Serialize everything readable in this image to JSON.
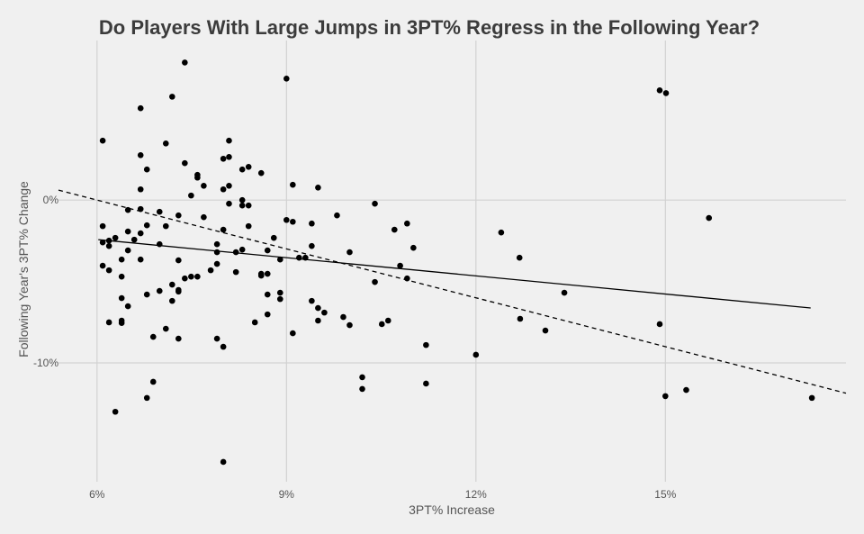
{
  "chart_data": {
    "type": "scatter",
    "title": "Do Players With Large Jumps in 3PT% Regress in the Following Year?",
    "xlabel": "3PT% Increase",
    "ylabel": "Following Year's 3PT% Change",
    "xlim": [
      5.39,
      17.86
    ],
    "ylim": [
      -17.3,
      9.8
    ],
    "x_ticks": [
      {
        "value": 6,
        "label": "6%"
      },
      {
        "value": 9,
        "label": "9%"
      },
      {
        "value": 12,
        "label": "12%"
      },
      {
        "value": 15,
        "label": "15%"
      }
    ],
    "y_ticks": [
      {
        "value": 0,
        "label": "0%"
      },
      {
        "value": -10,
        "label": "-10%"
      }
    ],
    "grid": true,
    "point_color": "#000000",
    "background": "#f0f0f0",
    "lines": [
      {
        "style": "solid",
        "intercept": -0.19,
        "slope": -0.372,
        "x_range": [
          6.02,
          17.3
        ]
      },
      {
        "style": "dashed",
        "intercept": 6.0,
        "slope": -1.0,
        "x_range": [
          5.39,
          17.86
        ]
      }
    ],
    "points": [
      [
        7.39,
        8.45
      ],
      [
        7.19,
        6.35
      ],
      [
        6.69,
        5.64
      ],
      [
        6.09,
        3.65
      ],
      [
        7.09,
        3.48
      ],
      [
        8.09,
        3.65
      ],
      [
        6.69,
        2.76
      ],
      [
        8.0,
        2.54
      ],
      [
        8.09,
        2.65
      ],
      [
        6.79,
        1.88
      ],
      [
        7.39,
        2.27
      ],
      [
        7.59,
        1.55
      ],
      [
        7.59,
        1.38
      ],
      [
        8.3,
        1.88
      ],
      [
        8.4,
        2.04
      ],
      [
        8.6,
        1.66
      ],
      [
        6.69,
        0.66
      ],
      [
        7.69,
        0.88
      ],
      [
        8.0,
        0.66
      ],
      [
        8.09,
        0.88
      ],
      [
        7.49,
        0.28
      ],
      [
        8.09,
        -0.22
      ],
      [
        8.3,
        0.0
      ],
      [
        8.3,
        -0.33
      ],
      [
        8.4,
        -0.33
      ],
      [
        6.49,
        -0.61
      ],
      [
        6.69,
        -0.55
      ],
      [
        6.99,
        -0.72
      ],
      [
        7.29,
        -0.94
      ],
      [
        7.69,
        -1.05
      ],
      [
        6.09,
        -1.6
      ],
      [
        6.79,
        -1.55
      ],
      [
        7.09,
        -1.6
      ],
      [
        8.0,
        -1.82
      ],
      [
        8.4,
        -1.6
      ],
      [
        6.49,
        -1.93
      ],
      [
        6.29,
        -2.32
      ],
      [
        6.59,
        -2.43
      ],
      [
        6.69,
        -2.04
      ],
      [
        6.09,
        -2.6
      ],
      [
        6.19,
        -2.49
      ],
      [
        6.19,
        -2.82
      ],
      [
        6.99,
        -2.71
      ],
      [
        7.9,
        -2.71
      ],
      [
        6.49,
        -3.09
      ],
      [
        7.9,
        -3.2
      ],
      [
        8.2,
        -3.2
      ],
      [
        8.3,
        -3.04
      ],
      [
        8.7,
        -3.09
      ],
      [
        6.39,
        -3.65
      ],
      [
        6.69,
        -3.65
      ],
      [
        7.29,
        -3.7
      ],
      [
        6.09,
        -4.03
      ],
      [
        6.19,
        -4.31
      ],
      [
        7.39,
        -4.81
      ],
      [
        7.49,
        -4.7
      ],
      [
        7.59,
        -4.7
      ],
      [
        7.8,
        -4.31
      ],
      [
        7.9,
        -3.92
      ],
      [
        8.2,
        -4.42
      ],
      [
        8.6,
        -4.53
      ],
      [
        8.6,
        -4.64
      ],
      [
        8.7,
        -4.53
      ],
      [
        6.39,
        -4.7
      ],
      [
        7.19,
        -5.19
      ],
      [
        6.99,
        -5.58
      ],
      [
        6.79,
        -5.8
      ],
      [
        7.29,
        -5.52
      ],
      [
        7.29,
        -5.62
      ],
      [
        7.19,
        -6.19
      ],
      [
        6.39,
        -6.02
      ],
      [
        6.49,
        -6.52
      ],
      [
        8.7,
        -5.8
      ],
      [
        6.19,
        -7.51
      ],
      [
        6.39,
        -7.4
      ],
      [
        6.39,
        -7.55
      ],
      [
        8.5,
        -7.51
      ],
      [
        8.7,
        -7.02
      ],
      [
        7.09,
        -7.9
      ],
      [
        6.89,
        -8.4
      ],
      [
        7.29,
        -8.51
      ],
      [
        7.9,
        -8.51
      ],
      [
        8.0,
        -9.01
      ],
      [
        6.89,
        -11.16
      ],
      [
        6.79,
        -12.15
      ],
      [
        6.29,
        -13.0
      ],
      [
        8.0,
        -16.08
      ],
      [
        9.0,
        7.46
      ],
      [
        9.1,
        0.94
      ],
      [
        9.5,
        0.77
      ],
      [
        10.4,
        -0.22
      ],
      [
        9.0,
        -1.22
      ],
      [
        9.1,
        -1.33
      ],
      [
        9.4,
        -1.44
      ],
      [
        9.8,
        -0.94
      ],
      [
        10.71,
        -1.82
      ],
      [
        10.91,
        -1.44
      ],
      [
        8.8,
        -2.32
      ],
      [
        9.4,
        -2.82
      ],
      [
        11.01,
        -2.93
      ],
      [
        8.9,
        -3.65
      ],
      [
        9.2,
        -3.54
      ],
      [
        9.3,
        -3.54
      ],
      [
        10.0,
        -3.2
      ],
      [
        10.8,
        -4.03
      ],
      [
        10.4,
        -5.03
      ],
      [
        10.91,
        -4.81
      ],
      [
        8.9,
        -5.69
      ],
      [
        8.9,
        -6.08
      ],
      [
        9.4,
        -6.19
      ],
      [
        9.5,
        -6.63
      ],
      [
        9.6,
        -6.91
      ],
      [
        9.5,
        -7.4
      ],
      [
        9.9,
        -7.18
      ],
      [
        10.0,
        -7.68
      ],
      [
        9.1,
        -8.18
      ],
      [
        10.51,
        -7.62
      ],
      [
        10.61,
        -7.4
      ],
      [
        11.21,
        -8.9
      ],
      [
        10.2,
        -10.88
      ],
      [
        10.2,
        -11.6
      ],
      [
        11.21,
        -11.27
      ],
      [
        12.4,
        -1.99
      ],
      [
        12.69,
        -3.54
      ],
      [
        12.7,
        -7.29
      ],
      [
        13.1,
        -8.01
      ],
      [
        13.4,
        -5.69
      ],
      [
        12.0,
        -9.5
      ],
      [
        14.91,
        6.74
      ],
      [
        15.01,
        6.57
      ],
      [
        15.69,
        -1.1
      ],
      [
        14.91,
        -7.62
      ],
      [
        15.0,
        -12.04
      ],
      [
        15.33,
        -11.66
      ],
      [
        17.32,
        -12.15
      ]
    ]
  }
}
